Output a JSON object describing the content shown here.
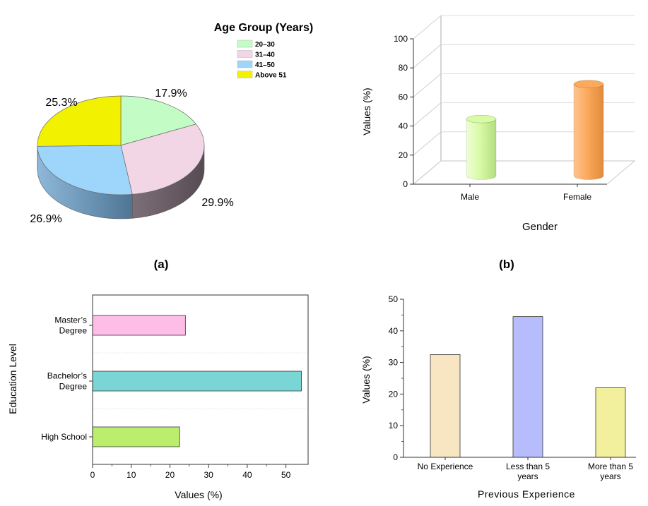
{
  "panel_labels": [
    "(a)",
    "(b)"
  ],
  "chart_data": [
    {
      "type": "pie",
      "title": "Age Group (Years)",
      "categories": [
        "20–30",
        "31–40",
        "41–50",
        "Above 51"
      ],
      "values": [
        17.9,
        29.9,
        26.9,
        25.3
      ],
      "value_labels": [
        "17.9%",
        "29.9%",
        "26.9%",
        "25.3%"
      ],
      "colors": [
        "#c3fcc4",
        "#f3d6e6",
        "#9ed5fb",
        "#f2f200"
      ],
      "side_colors": [
        "#9fcaa0",
        "#675a63",
        "#6f95b5",
        "#b0b000"
      ],
      "legend": "top-right",
      "style": "3d"
    },
    {
      "type": "bar",
      "style": "3d-cylinder",
      "categories": [
        "Male",
        "Female"
      ],
      "values": [
        39,
        63
      ],
      "colors": [
        "#d8fba6",
        "#fca95c"
      ],
      "xlabel": "Gender",
      "ylabel": "Values (%)",
      "ylim": [
        0,
        100
      ],
      "yticks": [
        "0",
        "20",
        "40",
        "60",
        "80",
        "100"
      ],
      "grid": true
    },
    {
      "type": "bar",
      "orientation": "horizontal",
      "categories": [
        "High School",
        "Bachelor’s Degree",
        "Master’s Degree"
      ],
      "category_lines": [
        [
          "High School"
        ],
        [
          "Bachelor’s",
          "Degree"
        ],
        [
          "Master’s",
          "Degree"
        ]
      ],
      "values": [
        22.5,
        54,
        24
      ],
      "colors": [
        "#bbee6c",
        "#7ad5d5",
        "#fdbde6"
      ],
      "xlabel": "Values (%)",
      "ylabel": "Education Level",
      "xlim": [
        0,
        55
      ],
      "xticks": [
        "0",
        "10",
        "20",
        "30",
        "40",
        "50"
      ],
      "grid": true
    },
    {
      "type": "bar",
      "categories": [
        "No Experience",
        "Less than 5 years",
        "More than 5 years"
      ],
      "category_lines": [
        [
          "No Experience"
        ],
        [
          "Less than 5",
          "years"
        ],
        [
          "More than 5",
          "years"
        ]
      ],
      "values": [
        32.5,
        44.5,
        22
      ],
      "colors": [
        "#f8e5c1",
        "#b7bdfc",
        "#f2f09d"
      ],
      "xlabel": "Previous Experience",
      "ylabel": "Values (%)",
      "ylim": [
        0,
        50
      ],
      "yticks": [
        "0",
        "10",
        "20",
        "30",
        "40",
        "50"
      ]
    }
  ]
}
